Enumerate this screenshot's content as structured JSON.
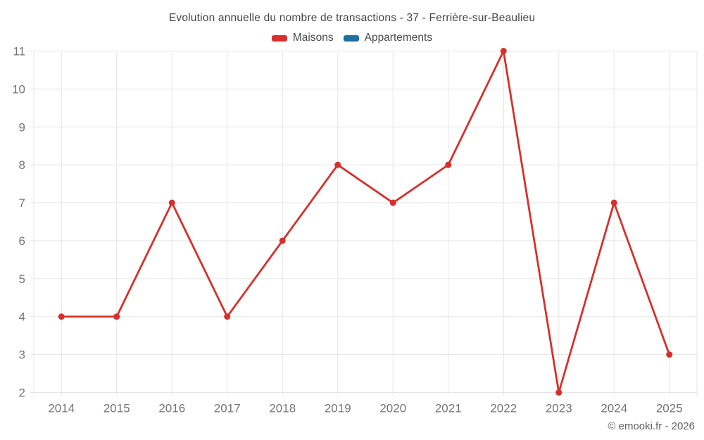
{
  "title": "Evolution annuelle du nombre de transactions - 37 - Ferrière-sur-Beaulieu",
  "legend": {
    "position": "top",
    "items": [
      {
        "label": "Maisons",
        "color": "#d7302c"
      },
      {
        "label": "Appartements",
        "color": "#1f6fa4"
      }
    ]
  },
  "footer": {
    "copyright": "© emooki.fr - 2026"
  },
  "colors": {
    "background": "#ffffff",
    "grid": "#e5e5e5",
    "axis_text": "#757575",
    "title_text": "#464646",
    "maisons_red": "#d7302c",
    "appartements_blue": "#1f6fa4"
  },
  "chart_data": {
    "type": "line",
    "title": "Evolution annuelle du nombre de transactions - 37 - Ferrière-sur-Beaulieu",
    "categories": [
      "2014",
      "2015",
      "2016",
      "2017",
      "2018",
      "2019",
      "2020",
      "2021",
      "2022",
      "2023",
      "2024",
      "2025"
    ],
    "series": [
      {
        "name": "Maisons",
        "color": "#d7302c",
        "values": [
          4,
          4,
          7,
          4,
          6,
          8,
          7,
          8,
          11,
          2,
          7,
          3
        ]
      },
      {
        "name": "Appartements",
        "color": "#1f6fa4",
        "values": []
      }
    ],
    "xlabel": "",
    "ylabel": "",
    "ylim": [
      2,
      11
    ],
    "yticks": [
      2,
      3,
      4,
      5,
      6,
      7,
      8,
      9,
      10,
      11
    ],
    "grid": true,
    "legend_position": "top"
  }
}
